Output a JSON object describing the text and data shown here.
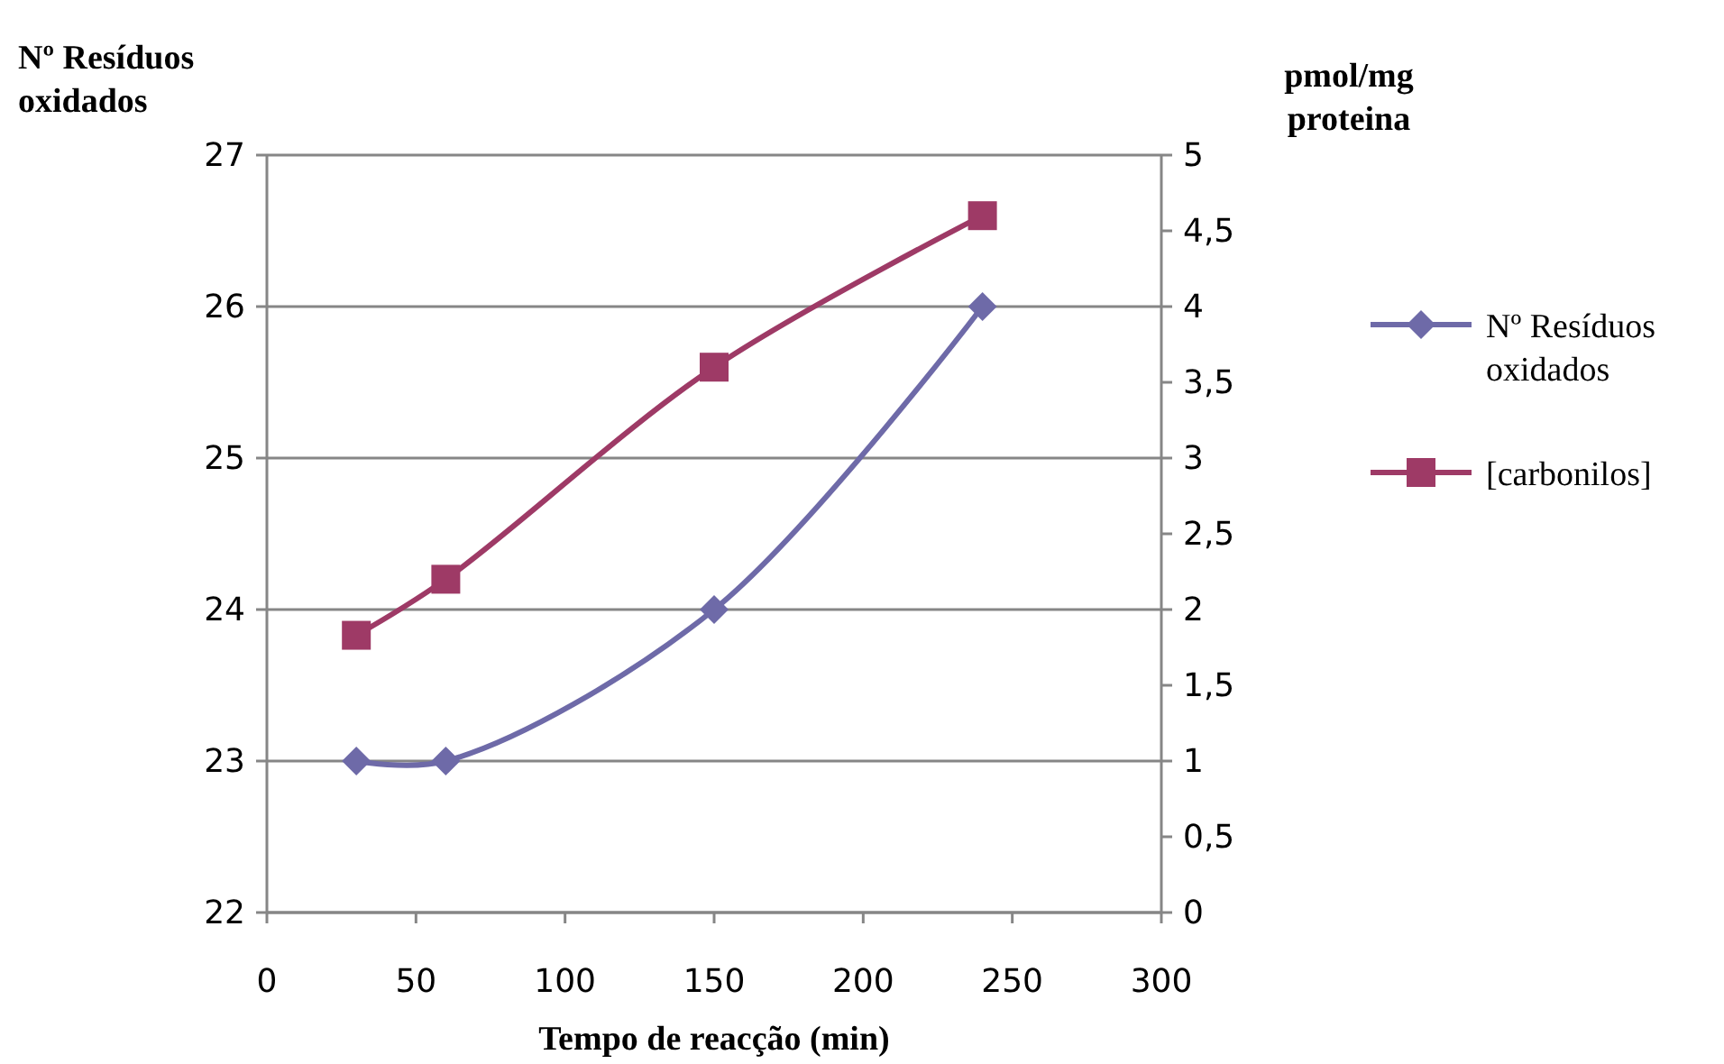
{
  "chart_data": {
    "type": "line",
    "xlabel": "Tempo de reacção (min)",
    "ylabel": "Nº Resíduos oxidados",
    "y2label": "pmol/mg proteina",
    "x": [
      30,
      60,
      150,
      240
    ],
    "series": [
      {
        "name": "Nº Resíduos oxidados",
        "color": "#6e6aa8",
        "values": [
          23,
          23,
          24,
          26
        ],
        "marker": "diamond"
      },
      {
        "name": "[carbonilos]",
        "color": "#9e3a66",
        "values": [
          1.83,
          2.2,
          3.6,
          4.6
        ],
        "marker": "square",
        "axis": "y2"
      }
    ],
    "xlim": [
      0,
      300
    ],
    "xticks": [
      0,
      50,
      100,
      150,
      200,
      250,
      300
    ],
    "ylim": [
      22,
      27
    ],
    "yticks": [
      22,
      23,
      24,
      25,
      26,
      27
    ],
    "y2lim": [
      0,
      5
    ],
    "y2ticks": [
      0,
      {
        "value": 0.5,
        "label": "0,5"
      },
      1,
      {
        "value": 1.5,
        "label": "1,5"
      },
      2,
      {
        "value": 2.5,
        "label": "2,5"
      },
      3,
      {
        "value": 3.5,
        "label": "3,5"
      },
      4,
      {
        "value": 4.5,
        "label": "4,5"
      },
      5
    ],
    "grid": "y",
    "legend": "right"
  }
}
